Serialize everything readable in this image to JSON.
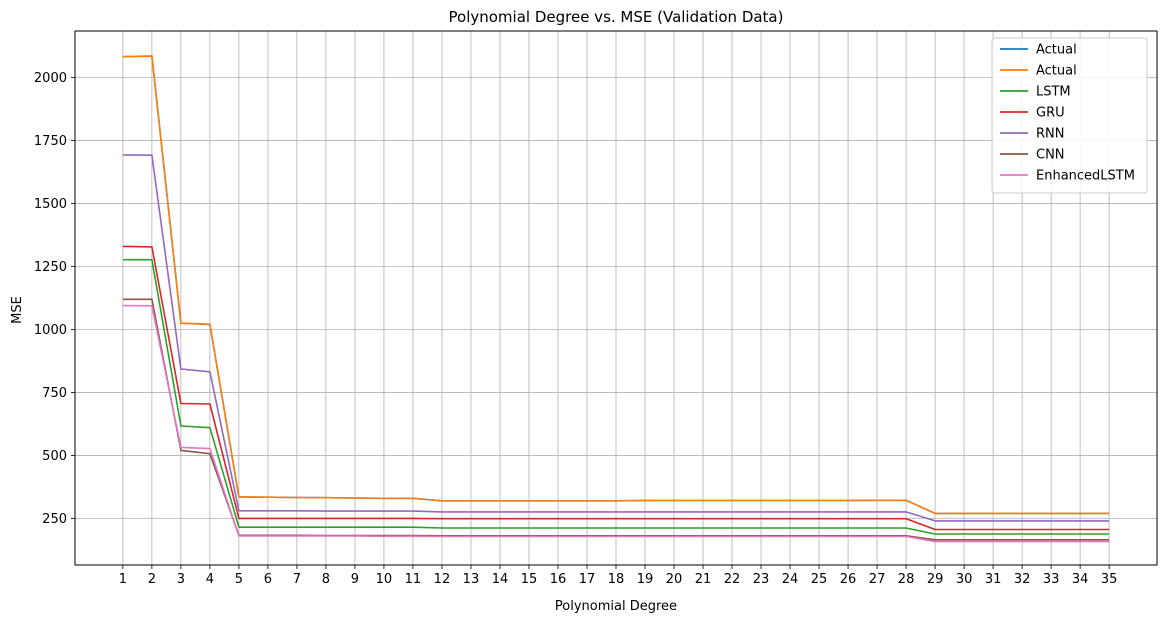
{
  "chart_data": {
    "type": "line",
    "title": "Polynomial Degree vs. MSE (Validation Data)",
    "xlabel": "Polynomial Degree",
    "ylabel": "MSE",
    "x": [
      1,
      2,
      3,
      4,
      5,
      6,
      7,
      8,
      9,
      10,
      11,
      12,
      13,
      14,
      15,
      16,
      17,
      18,
      19,
      20,
      21,
      22,
      23,
      24,
      25,
      26,
      27,
      28,
      29,
      30,
      31,
      32,
      33,
      34,
      35
    ],
    "yticks": [
      250,
      500,
      750,
      1000,
      1250,
      1500,
      1750,
      2000
    ],
    "ylim": [
      65,
      2185
    ],
    "grid": true,
    "legend_position": "top-right",
    "series": [
      {
        "name": "Actual",
        "color": "#1f77b4",
        "values": [
          2083,
          2085,
          1025,
          1020,
          335,
          334,
          333,
          332,
          331,
          330,
          330,
          320,
          320,
          320,
          320,
          320,
          320,
          320,
          321,
          321,
          321,
          321,
          321,
          321,
          321,
          321,
          322,
          322,
          270,
          270,
          270,
          270,
          270,
          270,
          270
        ]
      },
      {
        "name": "Actual",
        "color": "#ff7f0e",
        "values": [
          2083,
          2086,
          1025,
          1021,
          335,
          334,
          333,
          332,
          331,
          330,
          330,
          320,
          320,
          320,
          320,
          320,
          320,
          320,
          321,
          321,
          321,
          321,
          321,
          321,
          321,
          321,
          322,
          322,
          270,
          270,
          270,
          270,
          270,
          270,
          270
        ]
      },
      {
        "name": "LSTM",
        "color": "#2ca02c",
        "values": [
          1277,
          1277,
          617,
          610,
          215,
          215,
          215,
          215,
          215,
          215,
          215,
          212,
          212,
          212,
          212,
          212,
          212,
          212,
          212,
          212,
          212,
          212,
          212,
          212,
          212,
          212,
          212,
          212,
          188,
          188,
          188,
          188,
          188,
          188,
          188
        ]
      },
      {
        "name": "GRU",
        "color": "#d62728",
        "values": [
          1330,
          1328,
          706,
          704,
          250,
          250,
          250,
          250,
          250,
          250,
          250,
          249,
          249,
          249,
          249,
          249,
          249,
          249,
          249,
          249,
          249,
          249,
          249,
          249,
          249,
          249,
          249,
          249,
          206,
          206,
          206,
          206,
          206,
          206,
          206
        ]
      },
      {
        "name": "RNN",
        "color": "#9467bd",
        "values": [
          1693,
          1692,
          843,
          832,
          280,
          280,
          280,
          279,
          279,
          279,
          279,
          276,
          276,
          276,
          276,
          276,
          276,
          276,
          276,
          276,
          276,
          276,
          276,
          276,
          276,
          276,
          276,
          276,
          240,
          240,
          240,
          240,
          240,
          240,
          240
        ]
      },
      {
        "name": "CNN",
        "color": "#8c564b",
        "values": [
          1120,
          1120,
          520,
          507,
          183,
          183,
          183,
          182,
          182,
          182,
          182,
          181,
          181,
          181,
          181,
          181,
          181,
          181,
          181,
          181,
          181,
          181,
          181,
          181,
          181,
          181,
          181,
          181,
          165,
          165,
          165,
          165,
          165,
          165,
          165
        ]
      },
      {
        "name": "EnhancedLSTM",
        "color": "#e377c2",
        "values": [
          1095,
          1094,
          532,
          527,
          180,
          180,
          180,
          180,
          180,
          179,
          179,
          178,
          178,
          178,
          178,
          178,
          178,
          178,
          178,
          178,
          178,
          178,
          178,
          178,
          178,
          178,
          178,
          178,
          158,
          158,
          158,
          158,
          158,
          158,
          158
        ]
      }
    ]
  }
}
